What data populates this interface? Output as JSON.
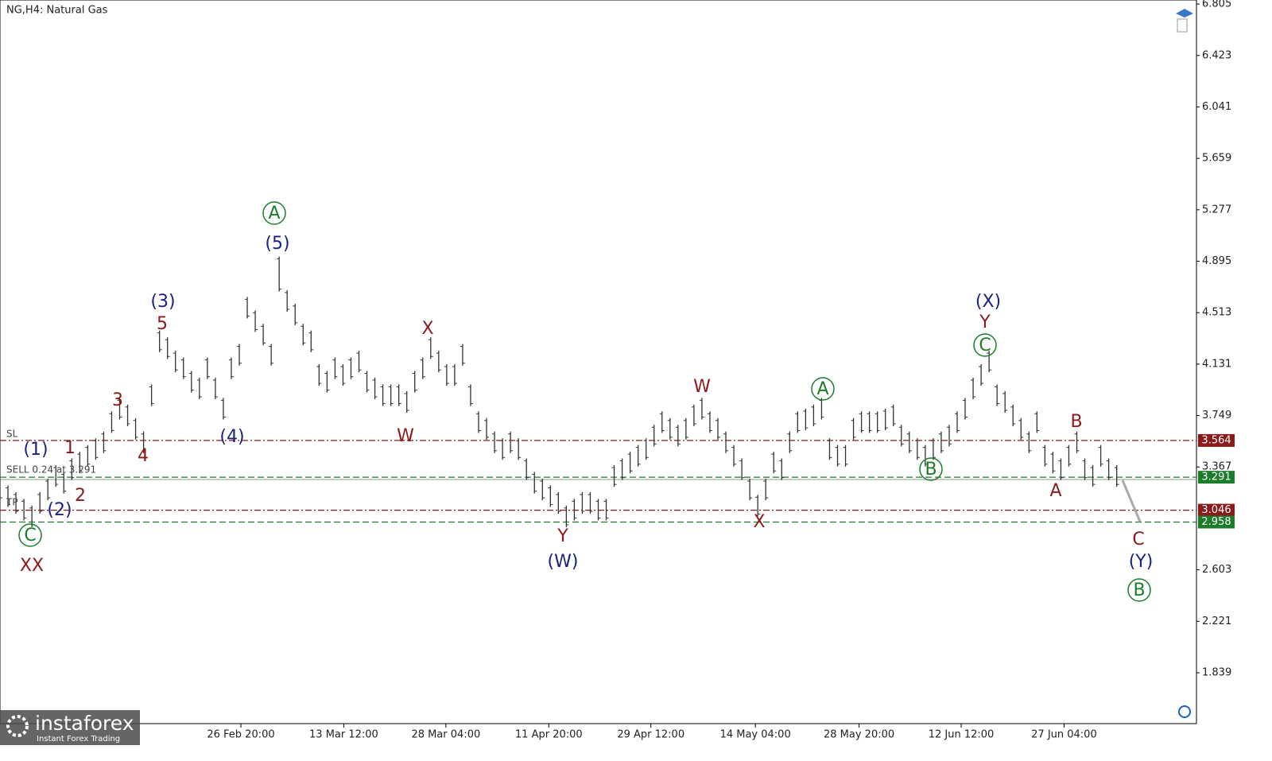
{
  "chart_data": {
    "type": "hlbar",
    "title": "NG,H4:  Natural Gas",
    "color": "#333333",
    "x": [
      0,
      1,
      2,
      3,
      4,
      5,
      6,
      7,
      8,
      9,
      10,
      11,
      12,
      13,
      14,
      15,
      16,
      17,
      18,
      19,
      20,
      21,
      22,
      23,
      24,
      25,
      26,
      27,
      28,
      29,
      30,
      31,
      32,
      33,
      34,
      35,
      36,
      37,
      38,
      39,
      40,
      41,
      42,
      43,
      44,
      45,
      46,
      47,
      48,
      49,
      50,
      51,
      52,
      53,
      54,
      55,
      56,
      57,
      58,
      59,
      60,
      61,
      62,
      63,
      64,
      65,
      66,
      67,
      68,
      69,
      70,
      71,
      72,
      73,
      74,
      75,
      76,
      77,
      78,
      79,
      80,
      81,
      82,
      83,
      84,
      85,
      86,
      87,
      88,
      89,
      90,
      91,
      92,
      93,
      94,
      95,
      96,
      97,
      98,
      99,
      100,
      101,
      102,
      103,
      104,
      105,
      106,
      107,
      108,
      109,
      110,
      111,
      112,
      113,
      114,
      115,
      116,
      117,
      118,
      119,
      120,
      121,
      122,
      123,
      124,
      125,
      126,
      127,
      128,
      129,
      130,
      131,
      132,
      133,
      134,
      135,
      136,
      137,
      138,
      139,
      140
    ],
    "high": [
      3.28,
      3.23,
      3.18,
      3.13,
      3.08,
      3.18,
      3.28,
      3.38,
      3.33,
      3.43,
      3.48,
      3.53,
      3.58,
      3.63,
      3.78,
      3.88,
      3.83,
      3.73,
      3.63,
      3.98,
      4.38,
      4.33,
      4.23,
      4.18,
      4.08,
      4.03,
      4.18,
      4.03,
      3.88,
      4.18,
      4.28,
      4.63,
      4.53,
      4.43,
      4.28,
      4.93,
      4.68,
      4.58,
      4.43,
      4.38,
      4.13,
      4.08,
      4.18,
      4.13,
      4.18,
      4.23,
      4.08,
      4.03,
      3.98,
      3.98,
      3.98,
      3.93,
      4.08,
      4.18,
      4.33,
      4.23,
      4.13,
      4.13,
      4.28,
      3.98,
      3.78,
      3.73,
      3.63,
      3.58,
      3.63,
      3.58,
      3.43,
      3.33,
      3.28,
      3.23,
      3.18,
      3.08,
      3.13,
      3.18,
      3.18,
      3.13,
      3.13,
      3.38,
      3.43,
      3.48,
      3.53,
      3.58,
      3.68,
      3.78,
      3.73,
      3.68,
      3.73,
      3.83,
      3.88,
      3.78,
      3.73,
      3.63,
      3.53,
      3.43,
      3.28,
      3.16,
      3.28,
      3.48,
      3.43,
      3.63,
      3.78,
      3.8,
      3.83,
      3.88,
      3.58,
      3.53,
      3.53,
      3.73,
      3.78,
      3.78,
      3.78,
      3.8,
      3.83,
      3.68,
      3.63,
      3.58,
      3.53,
      3.58,
      3.63,
      3.68,
      3.78,
      3.88,
      4.03,
      4.13,
      4.23,
      3.98,
      3.93,
      3.83,
      3.73,
      3.63,
      3.78,
      3.53,
      3.48,
      3.43,
      3.53,
      3.63,
      3.43,
      3.38,
      3.53,
      3.43,
      3.38
    ],
    "low": [
      3.12,
      3.07,
      3.02,
      2.97,
      2.92,
      3.02,
      3.12,
      3.22,
      3.17,
      3.27,
      3.32,
      3.37,
      3.42,
      3.47,
      3.62,
      3.72,
      3.67,
      3.57,
      3.47,
      3.82,
      4.22,
      4.17,
      4.07,
      4.02,
      3.92,
      3.87,
      4.02,
      3.87,
      3.72,
      4.02,
      4.12,
      4.47,
      4.37,
      4.27,
      4.12,
      4.67,
      4.52,
      4.42,
      4.27,
      4.22,
      3.97,
      3.92,
      4.02,
      3.97,
      4.02,
      4.07,
      3.92,
      3.87,
      3.82,
      3.82,
      3.82,
      3.77,
      3.92,
      4.02,
      4.17,
      4.07,
      3.97,
      3.97,
      4.12,
      3.82,
      3.62,
      3.57,
      3.47,
      3.42,
      3.47,
      3.42,
      3.27,
      3.17,
      3.12,
      3.07,
      3.02,
      2.92,
      2.97,
      3.02,
      3.02,
      2.97,
      2.97,
      3.22,
      3.27,
      3.32,
      3.37,
      3.42,
      3.52,
      3.62,
      3.57,
      3.52,
      3.57,
      3.67,
      3.72,
      3.62,
      3.57,
      3.47,
      3.37,
      3.27,
      3.12,
      3.0,
      3.12,
      3.32,
      3.27,
      3.47,
      3.62,
      3.64,
      3.67,
      3.72,
      3.42,
      3.37,
      3.37,
      3.57,
      3.62,
      3.62,
      3.62,
      3.64,
      3.67,
      3.52,
      3.47,
      3.42,
      3.37,
      3.42,
      3.47,
      3.52,
      3.62,
      3.72,
      3.87,
      3.97,
      4.07,
      3.82,
      3.77,
      3.67,
      3.57,
      3.47,
      3.62,
      3.37,
      3.32,
      3.27,
      3.37,
      3.47,
      3.27,
      3.22,
      3.37,
      3.27,
      3.22
    ],
    "xlim": [
      0,
      150
    ],
    "xticks": [
      {
        "value": 30.2,
        "label": "26 Feb 20:00"
      },
      {
        "value": 43.1,
        "label": "13 Mar 12:00"
      },
      {
        "value": 55.9,
        "label": "28 Mar 04:00"
      },
      {
        "value": 68.8,
        "label": "11 Apr 20:00"
      },
      {
        "value": 81.6,
        "label": "29 Apr 12:00"
      },
      {
        "value": 94.7,
        "label": "14 May 04:00"
      },
      {
        "value": 107.7,
        "label": "28 May 20:00"
      },
      {
        "value": 120.5,
        "label": "12 Jun 12:00"
      },
      {
        "value": 133.4,
        "label": "27 Jun 04:00"
      }
    ],
    "ylim": [
      1.461,
      6.835
    ],
    "yticks": [
      6.805,
      6.423,
      6.041,
      5.659,
      5.277,
      4.895,
      4.513,
      4.131,
      3.749,
      3.367,
      2.603,
      2.221,
      1.839
    ],
    "levels": [
      {
        "value": 3.564,
        "color": "#8b1a1a",
        "dash": "8 3 2 3",
        "label_box": true
      },
      {
        "value": 3.291,
        "color": "#1b7d2a",
        "dash": "8 4",
        "label_box": true
      },
      {
        "value": 3.046,
        "color": "#8b1a1a",
        "dash": "8 3 2 3",
        "label_box": true
      },
      {
        "value": 2.958,
        "color": "#1b7d2a",
        "dash": "8 4",
        "label_box": true
      },
      {
        "value": 3.274,
        "color": "#aaaaaa",
        "dash": "none",
        "label_box": false
      }
    ],
    "order_labels": [
      "SL",
      "SELL 0.24 at 3.291",
      "TP"
    ],
    "annotations": [
      {
        "text": "(1)",
        "color": "#1a237e",
        "circled": false
      },
      {
        "text": "1",
        "color": "#8b1a1a",
        "circled": false
      },
      {
        "text": "(2)",
        "color": "#1a237e",
        "circled": false
      },
      {
        "text": "2",
        "color": "#8b1a1a",
        "circled": false
      },
      {
        "text": "3",
        "color": "#8b1a1a",
        "circled": false
      },
      {
        "text": "4",
        "color": "#8b1a1a",
        "circled": false
      },
      {
        "text": "5",
        "color": "#8b1a1a",
        "circled": false
      },
      {
        "text": "(3)",
        "color": "#1a237e",
        "circled": false
      },
      {
        "text": "(4)",
        "color": "#1a237e",
        "circled": false
      },
      {
        "text": "(5)",
        "color": "#1a237e",
        "circled": false
      },
      {
        "text": "A",
        "color": "#1b7d2a",
        "circled": true
      },
      {
        "text": "X",
        "color": "#8b1a1a",
        "circled": false
      },
      {
        "text": "W",
        "color": "#8b1a1a",
        "circled": false
      },
      {
        "text": "Y",
        "color": "#8b1a1a",
        "circled": false
      },
      {
        "text": "(W)",
        "color": "#1a237e",
        "circled": false
      },
      {
        "text": "W",
        "color": "#8b1a1a",
        "circled": false
      },
      {
        "text": "X",
        "color": "#8b1a1a",
        "circled": false
      },
      {
        "text": "A",
        "color": "#1b7d2a",
        "circled": true
      },
      {
        "text": "B",
        "color": "#1b7d2a",
        "circled": true
      },
      {
        "text": "(X)",
        "color": "#1a237e",
        "circled": false
      },
      {
        "text": "Y",
        "color": "#8b1a1a",
        "circled": false
      },
      {
        "text": "C",
        "color": "#1b7d2a",
        "circled": true
      },
      {
        "text": "B",
        "color": "#8b1a1a",
        "circled": false
      },
      {
        "text": "A",
        "color": "#8b1a1a",
        "circled": false
      },
      {
        "text": "C",
        "color": "#8b1a1a",
        "circled": false
      },
      {
        "text": "(Y)",
        "color": "#1a237e",
        "circled": false
      },
      {
        "text": "B",
        "color": "#1b7d2a",
        "circled": true
      },
      {
        "text": "C",
        "color": "#1b7d2a",
        "circled": true
      },
      {
        "text": "XX",
        "color": "#8b1a1a",
        "circled": false
      }
    ],
    "watermark": {
      "brand": "instaforex",
      "tagline": "Instant Forex Trading"
    }
  }
}
